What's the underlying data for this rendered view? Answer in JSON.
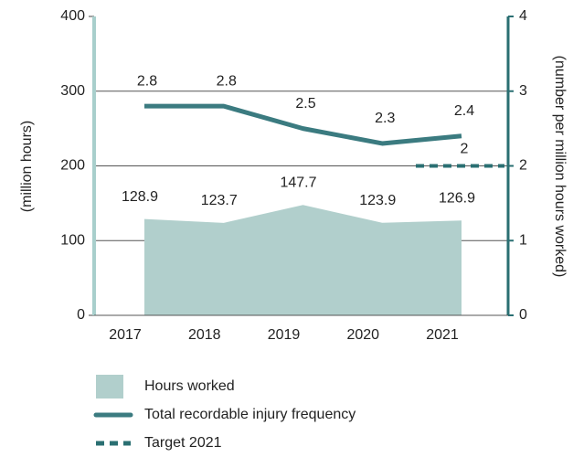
{
  "chart_data": {
    "type": "area-line",
    "categories": [
      "2017",
      "2018",
      "2019",
      "2020",
      "2021"
    ],
    "ylabel": "(million hours)",
    "y2label": "(number per million hours worked)",
    "ylim": [
      0,
      400
    ],
    "yticks": [
      0,
      100,
      200,
      300,
      400
    ],
    "y2lim": [
      0,
      4
    ],
    "y2ticks": [
      0,
      1,
      2,
      3,
      4
    ],
    "grid": true,
    "series": [
      {
        "name": "Hours worked",
        "type": "area",
        "color": "#b1cfcc",
        "values": [
          128.9,
          123.7,
          147.7,
          123.9,
          126.9
        ]
      },
      {
        "name": "Total recordable injury frequency",
        "type": "line",
        "axis": "y2",
        "color": "#3b7b80",
        "values": [
          2.8,
          2.8,
          2.5,
          2.3,
          2.4
        ]
      },
      {
        "name": "Target 2021",
        "type": "target",
        "axis": "y2",
        "color": "#2a6f72",
        "values": [
          null,
          null,
          null,
          null,
          2
        ]
      }
    ]
  }
}
